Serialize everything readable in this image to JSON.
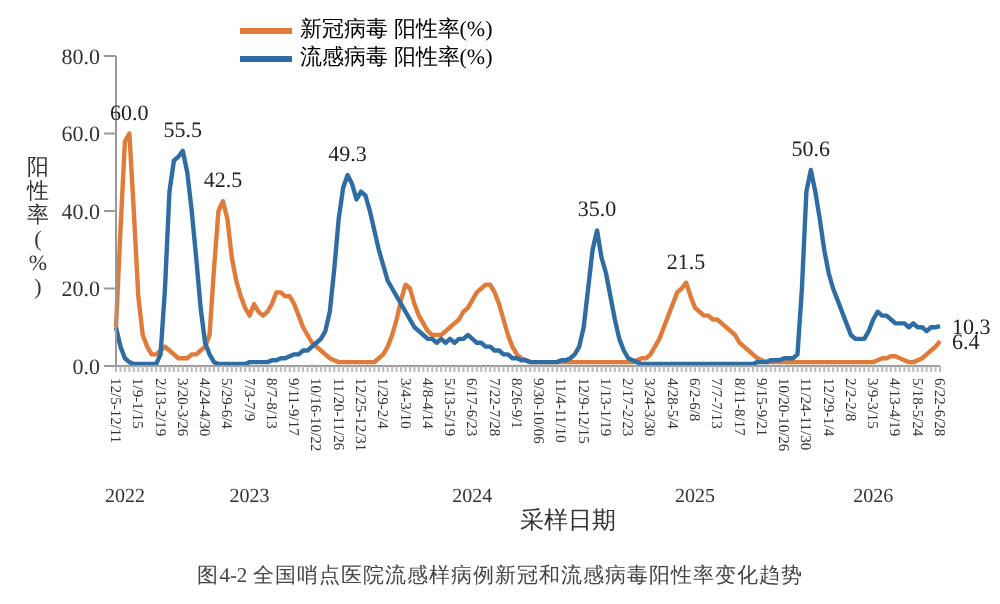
{
  "chart_data": {
    "type": "line",
    "title": "图4-2 全国哨点医院流感样病例新冠和流感病毒阳性率变化趋势",
    "xlabel": "采样日期",
    "ylabel": "阳性率(%)",
    "categories": [
      "12/5-12/11",
      null,
      null,
      null,
      null,
      "1/9-1/15",
      null,
      null,
      null,
      null,
      "2/13-2/19",
      null,
      null,
      null,
      null,
      "3/20-3/26",
      null,
      null,
      null,
      null,
      "4/24-4/30",
      null,
      null,
      null,
      null,
      "5/29-6/4",
      null,
      null,
      null,
      null,
      "7/3-7/9",
      null,
      null,
      null,
      null,
      "8/7-8/13",
      null,
      null,
      null,
      null,
      "9/11-9/17",
      null,
      null,
      null,
      null,
      "10/16-10/22",
      null,
      null,
      null,
      null,
      "11/20-11/26",
      null,
      null,
      null,
      null,
      "12/25-12/31",
      null,
      null,
      null,
      null,
      "1/29-2/4",
      null,
      null,
      null,
      null,
      "3/4-3/10",
      null,
      null,
      null,
      null,
      "4/8-4/14",
      null,
      null,
      null,
      null,
      "5/13-5/19",
      null,
      null,
      null,
      null,
      "6/17-6/23",
      null,
      null,
      null,
      null,
      "7/22-7/28",
      null,
      null,
      null,
      null,
      "8/26-9/1",
      null,
      null,
      null,
      null,
      "9/30-10/06",
      null,
      null,
      null,
      null,
      "11/4-11/10",
      null,
      null,
      null,
      null,
      "12/9-12/15",
      null,
      null,
      null,
      null,
      "1/13-1/19",
      null,
      null,
      null,
      null,
      "2/17-2/23",
      null,
      null,
      null,
      null,
      "3/24-3/30",
      null,
      null,
      null,
      null,
      "4/28-5/4",
      null,
      null,
      null,
      null,
      "6/2-6/8",
      null,
      null,
      null,
      null,
      "7/7-7/13",
      null,
      null,
      null,
      null,
      "8/11-8/17",
      null,
      null,
      null,
      null,
      "9/15-9/21",
      null,
      null,
      null,
      null,
      "10/20-10/26",
      null,
      null,
      null,
      null,
      "11/24-11/30",
      null,
      null,
      null,
      null,
      "12/29-1/4",
      null,
      null,
      null,
      null,
      "2/2-2/8",
      null,
      null,
      null,
      null,
      "3/9-3/15",
      null,
      null,
      null,
      null,
      "4/13-4/19",
      null,
      null,
      null,
      null,
      "5/18-5/24",
      null,
      null,
      null,
      null,
      "6/22-6/28"
    ],
    "series": [
      {
        "name": "新冠病毒 阳性率(%)",
        "color": "#e07b39",
        "values": [
          10,
          35,
          58,
          60,
          40,
          18,
          8,
          5,
          3,
          3,
          4,
          5,
          4,
          3,
          2,
          2,
          2,
          3,
          3,
          4,
          5,
          8,
          25,
          40,
          42.5,
          38,
          28,
          22,
          18,
          15,
          13,
          16,
          14,
          13,
          14,
          16,
          19,
          19,
          18,
          18,
          16,
          13,
          10,
          8,
          6,
          5,
          4,
          3,
          2,
          1.5,
          1,
          1,
          1,
          1,
          1,
          1,
          1,
          1,
          1,
          2,
          3,
          5,
          8,
          12,
          17,
          21,
          20,
          16,
          13,
          11,
          9,
          8,
          8,
          8,
          9,
          10,
          11,
          12,
          14,
          15,
          17,
          19,
          20,
          21,
          21,
          19,
          16,
          12,
          8,
          5,
          3,
          2,
          1.5,
          1,
          1,
          1,
          1,
          1,
          1,
          1,
          1,
          1,
          1,
          1,
          1,
          1,
          1,
          1,
          1,
          1,
          1,
          1,
          1,
          1,
          1,
          1,
          1,
          1.5,
          2,
          2,
          3,
          5,
          7,
          10,
          13,
          16,
          19,
          20,
          21.5,
          18,
          15,
          14,
          13,
          13,
          12,
          12,
          11,
          10,
          9,
          8,
          6,
          5,
          4,
          3,
          2,
          1.5,
          1,
          1,
          1,
          1,
          1,
          1,
          1,
          1,
          1,
          1,
          1,
          1,
          1,
          1,
          1,
          1,
          1,
          1,
          1,
          1,
          1,
          1,
          1,
          1,
          1,
          1.5,
          2,
          2,
          2.5,
          2.5,
          2,
          1.5,
          1,
          1,
          1.5,
          2,
          3,
          4,
          5,
          6.4
        ],
        "value_labels": [
          null,
          null,
          null,
          "60.0",
          null,
          null,
          null,
          null,
          null,
          null,
          null,
          null,
          null,
          null,
          null,
          null,
          null,
          null,
          null,
          null,
          null,
          null,
          null,
          null,
          "42.5",
          null,
          null,
          null,
          null,
          null,
          null,
          null,
          null,
          null,
          null,
          null,
          null,
          null,
          null,
          null,
          null,
          null,
          null,
          null,
          null,
          null,
          null,
          null,
          null,
          null,
          null,
          null,
          null,
          null,
          null,
          null,
          null,
          null,
          null,
          null,
          null,
          null,
          null,
          null,
          null,
          null,
          null,
          null,
          null,
          null,
          null,
          null,
          null,
          null,
          null,
          null,
          null,
          null,
          null,
          null,
          null,
          null,
          null,
          null,
          null,
          null,
          null,
          null,
          null,
          null,
          null,
          null,
          null,
          null,
          null,
          null,
          null,
          null,
          null,
          null,
          null,
          null,
          null,
          null,
          null,
          null,
          null,
          null,
          null,
          null,
          null,
          null,
          null,
          null,
          null,
          null,
          null,
          null,
          null,
          null,
          null,
          null,
          null,
          null,
          null,
          null,
          null,
          null,
          "21.5",
          null,
          null,
          null,
          null,
          null,
          null,
          null,
          null,
          null,
          null,
          null,
          null,
          null,
          null,
          null,
          null,
          null,
          null,
          null,
          null,
          null,
          null,
          null,
          null,
          null,
          null,
          null,
          null,
          null,
          null,
          null,
          null,
          null,
          null,
          null,
          null,
          null,
          null,
          null,
          null,
          null,
          null,
          null,
          null,
          null,
          null,
          null,
          null,
          null,
          null,
          null,
          null,
          null,
          null,
          null,
          null,
          "6.4"
        ]
      },
      {
        "name": "流感病毒 阳性率(%)",
        "color": "#2e6da4",
        "values": [
          10,
          5,
          2,
          1,
          0.5,
          0.5,
          0.5,
          0.5,
          0.5,
          0.5,
          3,
          20,
          45,
          53,
          54,
          55.5,
          50,
          40,
          28,
          15,
          6,
          3,
          1,
          0.5,
          0.5,
          0.5,
          0.5,
          0.5,
          0.5,
          0.5,
          1,
          1,
          1,
          1,
          1,
          1.5,
          1.5,
          2,
          2,
          2.5,
          3,
          3,
          4,
          4,
          5,
          6,
          7,
          9,
          14,
          25,
          38,
          46,
          49.3,
          47,
          43,
          45,
          44,
          40,
          35,
          30,
          26,
          22,
          20,
          18,
          16,
          14,
          12,
          10,
          9,
          8,
          7,
          7,
          6,
          7,
          6,
          7,
          6,
          7,
          7,
          8,
          7,
          6,
          6,
          5,
          5,
          4,
          4,
          3,
          3,
          2,
          2,
          1.5,
          1.5,
          1,
          1,
          1,
          1,
          1,
          1,
          1,
          1.5,
          1.5,
          2,
          3,
          5,
          10,
          20,
          30,
          35,
          28,
          24,
          18,
          12,
          7,
          4,
          2,
          1.5,
          1,
          0.5,
          0.5,
          0.5,
          0.5,
          0.5,
          0.5,
          0.5,
          0.5,
          0.5,
          0.5,
          0.5,
          0.5,
          0.5,
          0.5,
          0.5,
          0.5,
          0.5,
          0.5,
          0.5,
          0.5,
          0.5,
          0.5,
          0.5,
          0.5,
          0.5,
          0.5,
          1,
          1,
          1,
          1.5,
          1.5,
          1.5,
          2,
          2,
          2,
          3,
          20,
          45,
          50.6,
          45,
          38,
          30,
          24,
          20,
          17,
          14,
          11,
          8,
          7,
          7,
          7,
          9,
          12,
          14,
          13,
          13,
          12,
          11,
          11,
          11,
          10,
          11,
          10,
          10,
          9,
          10,
          10,
          10.3
        ],
        "value_labels": [
          null,
          null,
          null,
          null,
          null,
          null,
          null,
          null,
          null,
          null,
          null,
          null,
          null,
          null,
          null,
          "55.5",
          null,
          null,
          null,
          null,
          null,
          null,
          null,
          null,
          null,
          null,
          null,
          null,
          null,
          null,
          null,
          null,
          null,
          null,
          null,
          null,
          null,
          null,
          null,
          null,
          null,
          null,
          null,
          null,
          null,
          null,
          null,
          null,
          null,
          null,
          null,
          null,
          "49.3",
          null,
          null,
          null,
          null,
          null,
          null,
          null,
          null,
          null,
          null,
          null,
          null,
          null,
          null,
          null,
          null,
          null,
          null,
          null,
          null,
          null,
          null,
          null,
          null,
          null,
          null,
          null,
          null,
          null,
          null,
          null,
          null,
          null,
          null,
          null,
          null,
          null,
          null,
          null,
          null,
          null,
          null,
          null,
          null,
          null,
          null,
          null,
          null,
          null,
          null,
          null,
          null,
          null,
          null,
          null,
          "35.0",
          null,
          null,
          null,
          null,
          null,
          null,
          null,
          null,
          null,
          null,
          null,
          null,
          null,
          null,
          null,
          null,
          null,
          null,
          null,
          null,
          null,
          null,
          null,
          null,
          null,
          null,
          null,
          null,
          null,
          null,
          null,
          null,
          null,
          null,
          null,
          null,
          null,
          null,
          null,
          null,
          null,
          null,
          null,
          null,
          null,
          null,
          null,
          "50.6",
          null,
          null,
          null,
          null,
          null,
          null,
          null,
          null,
          null,
          null,
          null,
          null,
          null,
          null,
          null,
          null,
          null,
          null,
          null,
          null,
          null,
          null,
          null,
          null,
          null,
          null,
          null,
          null,
          "10.3"
        ]
      }
    ],
    "ylim": [
      0,
      80
    ],
    "yticks": [
      {
        "value": 0,
        "label": "0.0"
      },
      {
        "value": 20,
        "label": "20.0"
      },
      {
        "value": 40,
        "label": "40.0"
      },
      {
        "value": 60,
        "label": "60.0"
      },
      {
        "value": 80,
        "label": "80.0"
      }
    ],
    "annotations": [
      "2022",
      "2023",
      "2024",
      "2025",
      "2026"
    ],
    "legend": "top",
    "grid": false,
    "marker": "none",
    "line_style": "solid"
  }
}
